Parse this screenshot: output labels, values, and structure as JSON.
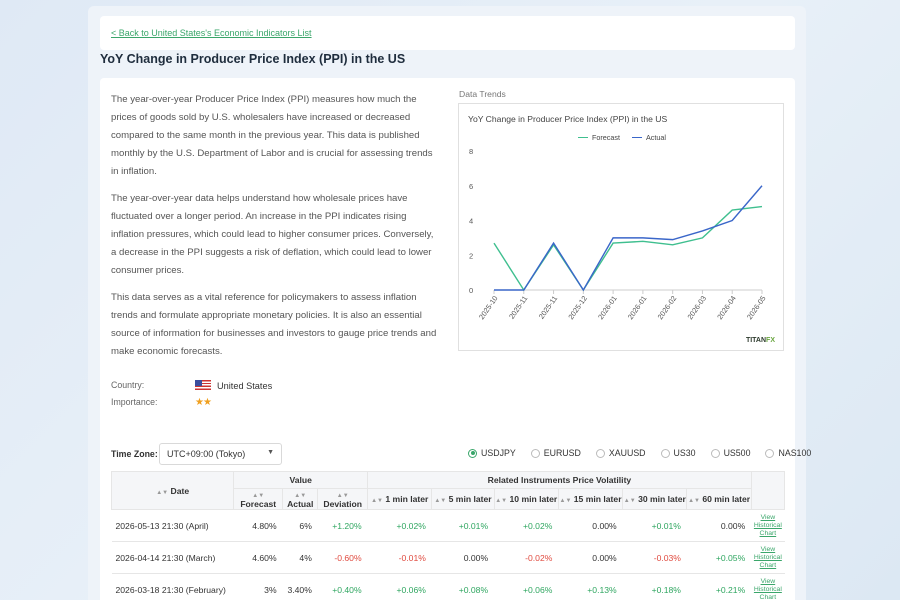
{
  "breadcrumb": {
    "back_label": "< Back to United States's Economic Indicators List"
  },
  "page": {
    "title": "YoY Change in Producer Price Index (PPI) in the US"
  },
  "description": [
    "The year-over-year Producer Price Index (PPI) measures how much the prices of goods sold by U.S. wholesalers have increased or decreased compared to the same month in the previous year. This data is published monthly by the U.S. Department of Labor and is crucial for assessing trends in inflation.",
    "The year-over-year data helps understand how wholesale prices have fluctuated over a longer period. An increase in the PPI indicates rising inflation pressures, which could lead to higher consumer prices. Conversely, a decrease in the PPI suggests a risk of deflation, which could lead to lower consumer prices.",
    "This data serves as a vital reference for policymakers to assess inflation trends and formulate appropriate monetary policies. It is also an essential source of information for businesses and investors to gauge price trends and make economic forecasts."
  ],
  "meta": {
    "country_label": "Country:",
    "country_value": "United States",
    "importance_label": "Importance:",
    "importance_stars": "★★",
    "importance_level": 2
  },
  "chart_section_label": "Data Trends",
  "chart_data": {
    "type": "line",
    "title": "YoY Change in Producer Price Index (PPI) in the US",
    "x": [
      "2025-10",
      "2025-11",
      "2025-11",
      "2025-12",
      "2026-01",
      "2026-01",
      "2026-02",
      "2026-03",
      "2026-04",
      "2026-05"
    ],
    "series": [
      {
        "name": "Forecast",
        "color": "#3fbf8f",
        "values": [
          2.7,
          0,
          2.6,
          0,
          2.7,
          2.8,
          2.6,
          3.0,
          4.6,
          4.8
        ]
      },
      {
        "name": "Actual",
        "color": "#3a66c9",
        "values": [
          0,
          0,
          2.7,
          0,
          3.0,
          3.0,
          2.9,
          3.4,
          4.0,
          6.0
        ]
      }
    ],
    "ylim": [
      0,
      8
    ],
    "yticks": [
      0,
      2,
      4,
      6,
      8
    ],
    "grid": false,
    "legend": "top-center"
  },
  "chart_brand": {
    "prefix": "TITAN",
    "suffix": "FX"
  },
  "timezone": {
    "label": "Time Zone:",
    "value": "UTC+09:00 (Tokyo)"
  },
  "instruments": [
    {
      "label": "USDJPY",
      "selected": true
    },
    {
      "label": "EURUSD",
      "selected": false
    },
    {
      "label": "XAUUSD",
      "selected": false
    },
    {
      "label": "US30",
      "selected": false
    },
    {
      "label": "US500",
      "selected": false
    },
    {
      "label": "NAS100",
      "selected": false
    }
  ],
  "table": {
    "date_header": "Date",
    "value_header": "Value",
    "volatility_header": "Related Instruments Price Volatility",
    "sub_headers": [
      "Forecast",
      "Actual",
      "Deviation",
      "1 min later",
      "5 min later",
      "10 min later",
      "15 min later",
      "30 min later",
      "60 min later"
    ],
    "link_label": "View Historical Chart",
    "rows": [
      {
        "date": "2026-05-13 21:30 (April)",
        "forecast": "4.80%",
        "actual": "6%",
        "deviation": "+1.20%",
        "v": [
          "+0.02%",
          "+0.01%",
          "+0.02%",
          "0.00%",
          "+0.01%",
          "0.00%"
        ]
      },
      {
        "date": "2026-04-14 21:30 (March)",
        "forecast": "4.60%",
        "actual": "4%",
        "deviation": "-0.60%",
        "v": [
          "-0.01%",
          "0.00%",
          "-0.02%",
          "0.00%",
          "-0.03%",
          "+0.05%"
        ]
      },
      {
        "date": "2026-03-18 21:30 (February)",
        "forecast": "3%",
        "actual": "3.40%",
        "deviation": "+0.40%",
        "v": [
          "+0.06%",
          "+0.08%",
          "+0.06%",
          "+0.13%",
          "+0.18%",
          "+0.21%"
        ]
      }
    ]
  }
}
